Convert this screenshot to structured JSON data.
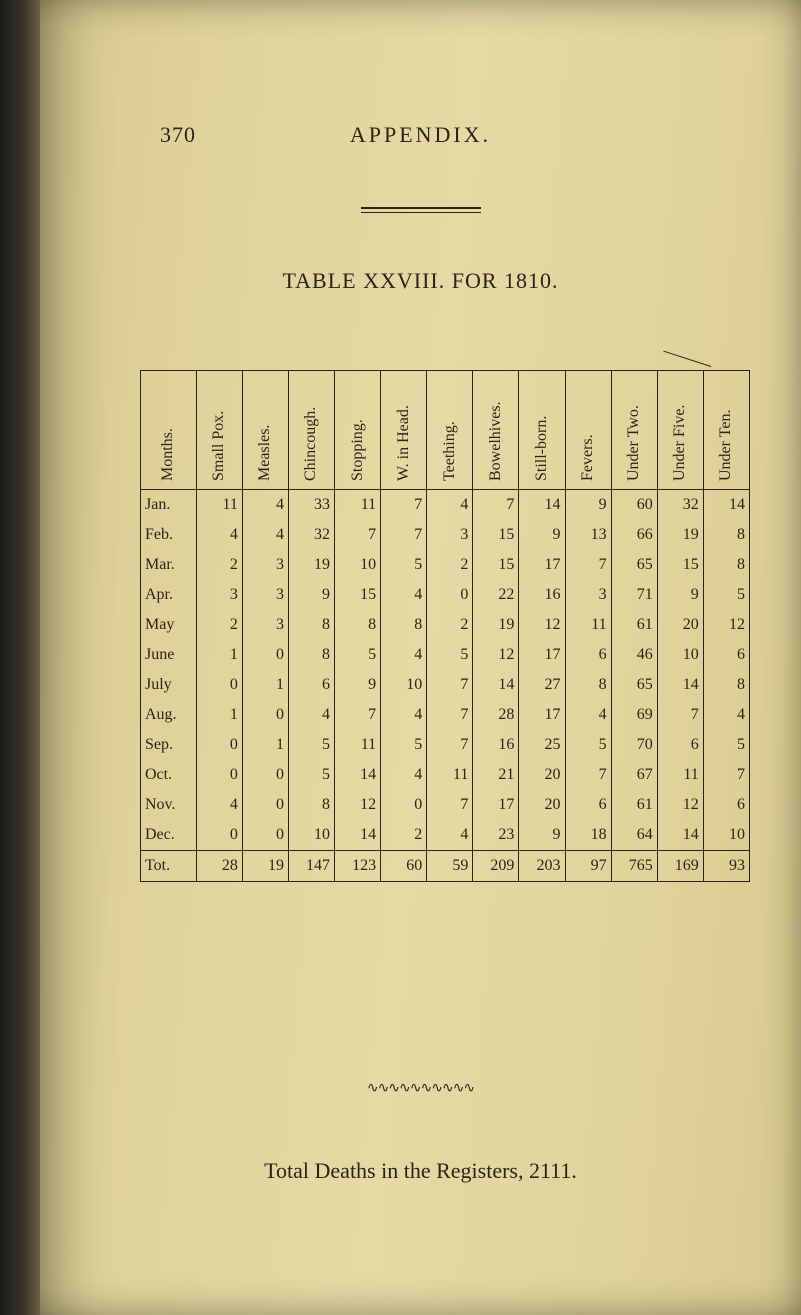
{
  "page_number": "370",
  "header": "APPENDIX.",
  "table_title_a": "TABLE XXVIII.",
  "table_title_b": " FOR 1810.",
  "columns": [
    "Months.",
    "Small Pox.",
    "Measles.",
    "Chincough.",
    "Stopping.",
    "W. in Head.",
    "Teething.",
    "Bowelhives.",
    "Still-born.",
    "Fevers.",
    "Under Two.",
    "Under Five.",
    "Under Ten."
  ],
  "rows": [
    {
      "m": "Jan.",
      "v": [
        "11",
        "4",
        "33",
        "11",
        "7",
        "4",
        "7",
        "14",
        "9",
        "60",
        "32",
        "14"
      ]
    },
    {
      "m": "Feb.",
      "v": [
        "4",
        "4",
        "32",
        "7",
        "7",
        "3",
        "15",
        "9",
        "13",
        "66",
        "19",
        "8"
      ]
    },
    {
      "m": "Mar.",
      "v": [
        "2",
        "3",
        "19",
        "10",
        "5",
        "2",
        "15",
        "17",
        "7",
        "65",
        "15",
        "8"
      ]
    },
    {
      "m": "Apr.",
      "v": [
        "3",
        "3",
        "9",
        "15",
        "4",
        "0",
        "22",
        "16",
        "3",
        "71",
        "9",
        "5"
      ]
    },
    {
      "m": "May",
      "v": [
        "2",
        "3",
        "8",
        "8",
        "8",
        "2",
        "19",
        "12",
        "11",
        "61",
        "20",
        "12"
      ]
    },
    {
      "m": "June",
      "v": [
        "1",
        "0",
        "8",
        "5",
        "4",
        "5",
        "12",
        "17",
        "6",
        "46",
        "10",
        "6"
      ]
    },
    {
      "m": "July",
      "v": [
        "0",
        "1",
        "6",
        "9",
        "10",
        "7",
        "14",
        "27",
        "8",
        "65",
        "14",
        "8"
      ]
    },
    {
      "m": "Aug.",
      "v": [
        "1",
        "0",
        "4",
        "7",
        "4",
        "7",
        "28",
        "17",
        "4",
        "69",
        "7",
        "4"
      ]
    },
    {
      "m": "Sep.",
      "v": [
        "0",
        "1",
        "5",
        "11",
        "5",
        "7",
        "16",
        "25",
        "5",
        "70",
        "6",
        "5"
      ]
    },
    {
      "m": "Oct.",
      "v": [
        "0",
        "0",
        "5",
        "14",
        "4",
        "11",
        "21",
        "20",
        "7",
        "67",
        "11",
        "7"
      ]
    },
    {
      "m": "Nov.",
      "v": [
        "4",
        "0",
        "8",
        "12",
        "0",
        "7",
        "17",
        "20",
        "6",
        "61",
        "12",
        "6"
      ]
    },
    {
      "m": "Dec.",
      "v": [
        "0",
        "0",
        "10",
        "14",
        "2",
        "4",
        "23",
        "9",
        "18",
        "64",
        "14",
        "10"
      ]
    }
  ],
  "total": {
    "m": "Tot.",
    "v": [
      "28",
      "19",
      "147",
      "123",
      "60",
      "59",
      "209",
      "203",
      "97",
      "765",
      "169",
      "93"
    ]
  },
  "squiggle": "∿∿∿∿∿∿∿∿∿∿",
  "footer": "Total Deaths in the Registers, 2111."
}
